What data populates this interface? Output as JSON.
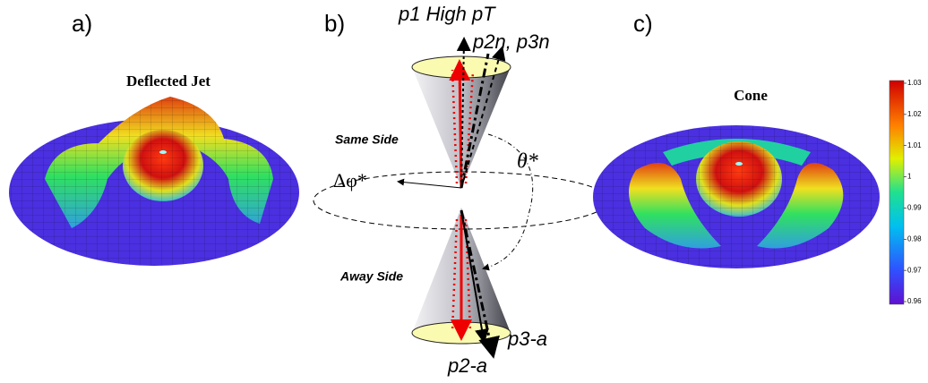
{
  "panels": {
    "a": {
      "label": "a)",
      "title": "Deflected Jet"
    },
    "b": {
      "label": "b)",
      "p1": "p1 High pT",
      "p2n": "p2n, p3n",
      "same_side": "Same Side",
      "away_side": "Away Side",
      "delta_phi": "Δφ*",
      "theta": "θ*",
      "p3a": "p3-a",
      "p2a": "p2-a"
    },
    "c": {
      "label": "c)",
      "title": "Cone"
    }
  },
  "colorbar": {
    "range": [
      0.96,
      1.03
    ],
    "ticks": [
      1.03,
      1.02,
      1.01,
      1,
      0.99,
      0.98,
      0.97,
      0.96
    ]
  }
}
